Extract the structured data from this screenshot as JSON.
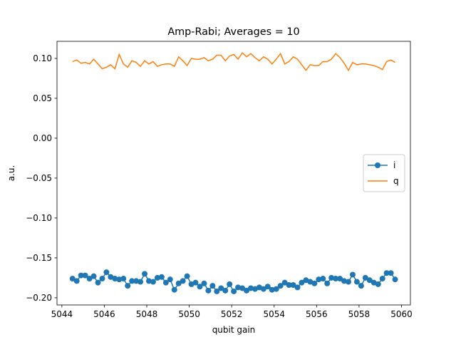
{
  "chart_data": {
    "type": "line",
    "title": "Amp-Rabi; Averages = 10",
    "xlabel": "qubit gain",
    "ylabel": "a.u.",
    "x": [
      5044.5,
      5044.7,
      5044.9,
      5045.1,
      5045.3,
      5045.5,
      5045.7,
      5045.9,
      5046.1,
      5046.3,
      5046.5,
      5046.7,
      5046.9,
      5047.1,
      5047.3,
      5047.5,
      5047.7,
      5047.9,
      5048.1,
      5048.3,
      5048.5,
      5048.7,
      5048.9,
      5049.1,
      5049.3,
      5049.5,
      5049.7,
      5049.9,
      5050.1,
      5050.3,
      5050.5,
      5050.7,
      5050.9,
      5051.1,
      5051.3,
      5051.5,
      5051.7,
      5051.9,
      5052.1,
      5052.3,
      5052.5,
      5052.7,
      5052.9,
      5053.1,
      5053.3,
      5053.5,
      5053.7,
      5053.9,
      5054.1,
      5054.3,
      5054.5,
      5054.7,
      5054.9,
      5055.1,
      5055.3,
      5055.5,
      5055.7,
      5055.9,
      5056.1,
      5056.3,
      5056.5,
      5056.7,
      5056.9,
      5057.1,
      5057.3,
      5057.5,
      5057.7,
      5057.9,
      5058.1,
      5058.3,
      5058.5,
      5058.7,
      5058.9,
      5059.1,
      5059.3,
      5059.5,
      5059.7
    ],
    "series": [
      {
        "name": "i",
        "color": "#1f77b4",
        "marker": "o",
        "values": [
          -0.176,
          -0.179,
          -0.172,
          -0.172,
          -0.176,
          -0.173,
          -0.181,
          -0.176,
          -0.168,
          -0.174,
          -0.176,
          -0.177,
          -0.176,
          -0.185,
          -0.179,
          -0.179,
          -0.18,
          -0.17,
          -0.179,
          -0.18,
          -0.175,
          -0.174,
          -0.181,
          -0.177,
          -0.19,
          -0.182,
          -0.179,
          -0.173,
          -0.183,
          -0.181,
          -0.186,
          -0.182,
          -0.191,
          -0.185,
          -0.192,
          -0.188,
          -0.191,
          -0.183,
          -0.192,
          -0.187,
          -0.188,
          -0.191,
          -0.188,
          -0.189,
          -0.187,
          -0.189,
          -0.186,
          -0.19,
          -0.189,
          -0.185,
          -0.181,
          -0.184,
          -0.184,
          -0.187,
          -0.181,
          -0.178,
          -0.18,
          -0.182,
          -0.177,
          -0.176,
          -0.182,
          -0.175,
          -0.176,
          -0.176,
          -0.179,
          -0.18,
          -0.171,
          -0.18,
          -0.185,
          -0.175,
          -0.178,
          -0.181,
          -0.183,
          -0.176,
          -0.169,
          -0.169,
          -0.177
        ]
      },
      {
        "name": "q",
        "color": "#ff7f0e",
        "values": [
          0.096,
          0.098,
          0.094,
          0.095,
          0.093,
          0.099,
          0.093,
          0.087,
          0.089,
          0.092,
          0.087,
          0.105,
          0.093,
          0.089,
          0.097,
          0.095,
          0.09,
          0.097,
          0.093,
          0.096,
          0.09,
          0.092,
          0.093,
          0.093,
          0.09,
          0.102,
          0.097,
          0.091,
          0.1,
          0.099,
          0.099,
          0.101,
          0.097,
          0.099,
          0.104,
          0.104,
          0.097,
          0.103,
          0.105,
          0.099,
          0.107,
          0.102,
          0.106,
          0.101,
          0.097,
          0.102,
          0.099,
          0.093,
          0.099,
          0.106,
          0.093,
          0.096,
          0.102,
          0.099,
          0.092,
          0.085,
          0.092,
          0.091,
          0.091,
          0.096,
          0.096,
          0.099,
          0.106,
          0.101,
          0.094,
          0.085,
          0.095,
          0.092,
          0.093,
          0.093,
          0.092,
          0.091,
          0.089,
          0.086,
          0.096,
          0.098,
          0.095
        ]
      }
    ],
    "xlim": [
      5043.77,
      5060.42
    ],
    "ylim": [
      -0.209,
      0.1214
    ],
    "xticks": [
      5044,
      5046,
      5048,
      5050,
      5052,
      5054,
      5056,
      5058,
      5060
    ],
    "yticks": [
      {
        "value": 0.1,
        "label": "0.10"
      },
      {
        "value": 0.05,
        "label": "0.05"
      },
      {
        "value": 0.0,
        "label": "0.00"
      },
      {
        "value": -0.05,
        "label": "−0.05"
      },
      {
        "value": -0.1,
        "label": "−0.10"
      },
      {
        "value": -0.15,
        "label": "−0.15"
      },
      {
        "value": -0.2,
        "label": "−0.20"
      }
    ],
    "legend": "center right"
  }
}
